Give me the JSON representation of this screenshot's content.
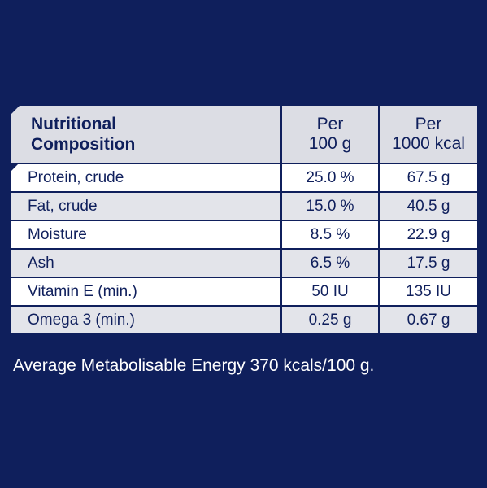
{
  "table": {
    "header": {
      "col1_line1": "Nutritional",
      "col1_line2": "Composition",
      "col2_line1": "Per",
      "col2_line2": "100 g",
      "col3_line1": "Per",
      "col3_line2": "1000 kcal"
    },
    "rows": [
      {
        "label": "Protein, crude",
        "per100g": "25.0 %",
        "per1000kcal": "67.5 g"
      },
      {
        "label": "Fat, crude",
        "per100g": "15.0 %",
        "per1000kcal": "40.5 g"
      },
      {
        "label": "Moisture",
        "per100g": "8.5 %",
        "per1000kcal": "22.9 g"
      },
      {
        "label": "Ash",
        "per100g": "6.5 %",
        "per1000kcal": "17.5 g"
      },
      {
        "label": "Vitamin E (min.)",
        "per100g": "50 IU",
        "per1000kcal": "135 IU"
      },
      {
        "label": "Omega 3 (min.)",
        "per100g": "0.25 g",
        "per1000kcal": "0.67 g"
      }
    ]
  },
  "footnote": "Average Metabolisable Energy 370 kcals/100 g.",
  "colors": {
    "background": "#0f1f5c",
    "header_bg": "#dcdde4",
    "row_white": "#ffffff",
    "row_grey": "#e3e4ea",
    "text_dark": "#0f1f5c",
    "text_light": "#ffffff"
  }
}
